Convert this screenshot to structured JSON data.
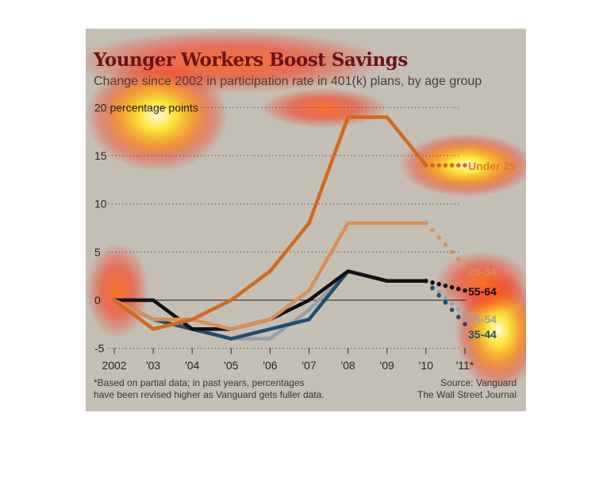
{
  "title": "Younger Workers Boost Savings",
  "subtitle": "Change since 2002 in participation rate in 401(k) plans, by age group",
  "footnote": "*Based on partial data; in past years, percentages\nhave been revised higher as Vanguard gets fuller data.",
  "source": "Source: Vanguard\nThe Wall Street Journal",
  "chart_data": {
    "type": "line",
    "title": "Younger Workers Boost Savings",
    "subtitle": "Change since 2002 in participation rate in 401(k) plans, by age group",
    "categories": [
      "2002",
      "'03",
      "'04",
      "'05",
      "'06",
      "'07",
      "'08",
      "'09",
      "'10",
      "'11*"
    ],
    "ylim": [
      -5,
      20
    ],
    "yticks": [
      -5,
      0,
      5,
      10,
      15,
      20
    ],
    "ytick_labels": [
      "-5",
      "0",
      "5",
      "10",
      "15",
      "20 percentage points"
    ],
    "grid": "dotted horizontal",
    "partial_year": "'11*",
    "series": [
      {
        "name": "Under 25",
        "color": "#d2691e",
        "values": [
          0,
          -3,
          -2,
          0,
          3,
          8,
          19,
          19,
          14,
          14
        ]
      },
      {
        "name": "25-34",
        "color": "#d89055",
        "values": [
          0,
          -2,
          -2,
          -3,
          -2,
          1,
          8,
          8,
          8,
          3.5
        ]
      },
      {
        "name": "55-64",
        "color": "#111111",
        "values": [
          0,
          0,
          -3,
          -3,
          -2,
          0,
          3,
          2,
          2,
          1
        ]
      },
      {
        "name": "45-54",
        "color": "#9aa0a8",
        "values": [
          0,
          -2,
          -3,
          -4,
          -4,
          -1,
          3,
          2,
          2,
          -1.5
        ]
      },
      {
        "name": "35-44",
        "color": "#1f4e73",
        "values": [
          0,
          -2,
          -3,
          -4,
          -3,
          -2,
          3,
          2,
          2,
          -2.5
        ]
      }
    ]
  }
}
